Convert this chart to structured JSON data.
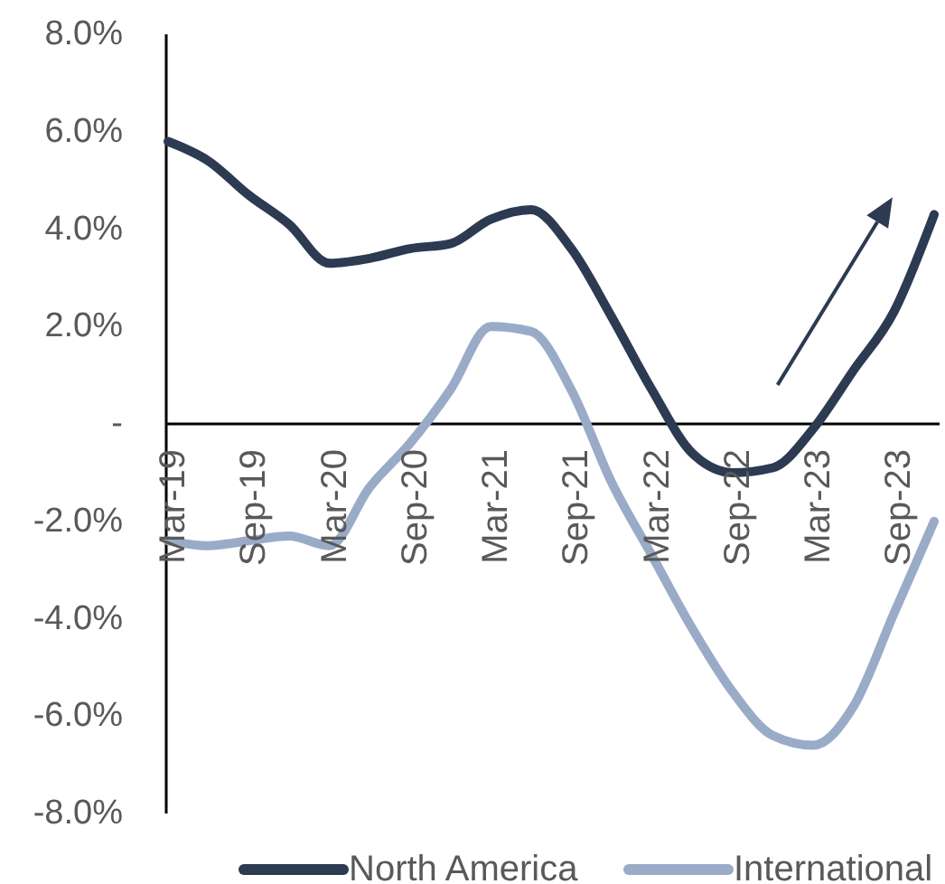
{
  "chart_data": {
    "type": "line",
    "categories": [
      "Mar-19",
      null,
      "Sep-19",
      null,
      "Mar-20",
      null,
      "Sep-20",
      null,
      "Mar-21",
      null,
      "Sep-21",
      null,
      "Mar-22",
      null,
      "Sep-22",
      null,
      "Mar-23",
      null,
      "Sep-23",
      null
    ],
    "series": [
      {
        "name": "North America",
        "color": "#2c3a52",
        "values": [
          5.8,
          5.4,
          4.7,
          4.1,
          3.3,
          3.4,
          3.6,
          3.7,
          4.2,
          4.4,
          3.6,
          2.2,
          0.7,
          -0.6,
          -1.0,
          -0.9,
          -0.1,
          1.1,
          2.3,
          4.3
        ]
      },
      {
        "name": "International",
        "color": "#9aabc8",
        "values": [
          -2.4,
          -2.5,
          -2.4,
          -2.3,
          -2.5,
          -1.3,
          -0.4,
          0.7,
          2.0,
          1.9,
          0.7,
          -1.2,
          -2.7,
          -4.2,
          -5.5,
          -6.4,
          -6.6,
          -5.8,
          -3.9,
          -2.0
        ]
      }
    ],
    "ylim": [
      -8,
      8
    ],
    "yticks": [
      {
        "value": 8,
        "label": "8.0%"
      },
      {
        "value": 6,
        "label": "6.0%"
      },
      {
        "value": 4,
        "label": "4.0%"
      },
      {
        "value": 2,
        "label": "2.0%"
      },
      {
        "value": 0,
        "label": "-"
      },
      {
        "value": -2,
        "label": "-2.0%"
      },
      {
        "value": -4,
        "label": "-4.0%"
      },
      {
        "value": -6,
        "label": "-6.0%"
      },
      {
        "value": -8,
        "label": "-8.0%"
      }
    ],
    "legend": "bottom"
  }
}
